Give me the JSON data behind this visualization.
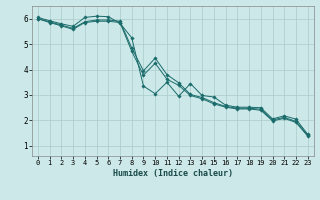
{
  "xlabel": "Humidex (Indice chaleur)",
  "xlim": [
    -0.5,
    23.5
  ],
  "ylim": [
    0.6,
    6.5
  ],
  "xticks": [
    0,
    1,
    2,
    3,
    4,
    5,
    6,
    7,
    8,
    9,
    10,
    11,
    12,
    13,
    14,
    15,
    16,
    17,
    18,
    19,
    20,
    21,
    22,
    23
  ],
  "yticks": [
    1,
    2,
    3,
    4,
    5,
    6
  ],
  "background_color": "#cce8e8",
  "grid_color": "#aacccc",
  "line_color": "#1a6b6b",
  "line1_x": [
    0,
    1,
    2,
    3,
    4,
    5,
    6,
    7,
    8,
    9,
    10,
    11,
    12,
    13,
    14,
    15,
    16,
    17,
    18,
    19,
    20,
    21,
    22,
    23
  ],
  "line1_y": [
    6.05,
    5.92,
    5.8,
    5.7,
    6.05,
    6.1,
    6.08,
    5.82,
    5.25,
    3.35,
    3.05,
    3.5,
    2.95,
    3.45,
    2.98,
    2.92,
    2.6,
    2.52,
    2.52,
    2.5,
    2.06,
    2.18,
    2.05,
    1.45
  ],
  "line2_x": [
    0,
    1,
    2,
    3,
    4,
    5,
    6,
    7,
    8,
    9,
    10,
    11,
    12,
    13,
    14,
    15,
    16,
    17,
    18,
    19,
    20,
    21,
    22,
    23
  ],
  "line2_y": [
    6.0,
    5.88,
    5.75,
    5.62,
    5.88,
    5.95,
    5.95,
    5.9,
    4.85,
    3.95,
    4.45,
    3.8,
    3.48,
    3.02,
    2.9,
    2.7,
    2.55,
    2.48,
    2.48,
    2.44,
    2.02,
    2.12,
    1.96,
    1.42
  ],
  "line3_x": [
    0,
    1,
    2,
    3,
    4,
    5,
    6,
    7,
    8,
    9,
    10,
    11,
    12,
    13,
    14,
    15,
    16,
    17,
    18,
    19,
    20,
    21,
    22,
    23
  ],
  "line3_y": [
    6.0,
    5.85,
    5.72,
    5.58,
    5.85,
    5.9,
    5.9,
    5.85,
    4.72,
    3.78,
    4.25,
    3.62,
    3.38,
    2.98,
    2.85,
    2.65,
    2.52,
    2.45,
    2.45,
    2.4,
    1.98,
    2.08,
    1.92,
    1.38
  ]
}
